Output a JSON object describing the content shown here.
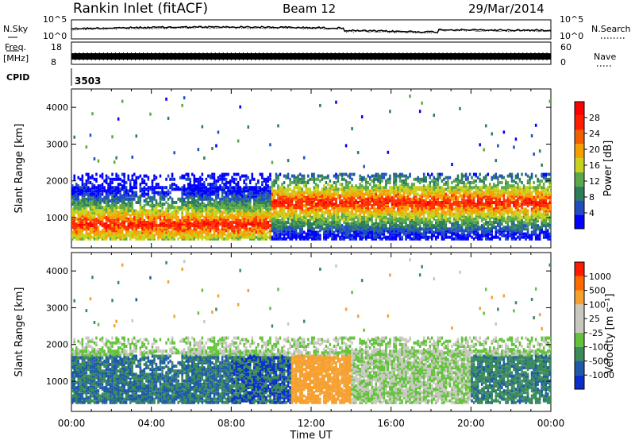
{
  "header": {
    "station": "Rankin Inlet (fitACF)",
    "beam": "Beam 12",
    "date": "29/Mar/2014"
  },
  "top_panels": {
    "nsky_label": "N.Sky",
    "nsearch_label": "N.Search",
    "nsky_ticks": [
      "10^5",
      "10^0"
    ],
    "nsearch_ticks": [
      "10^5",
      "10^0"
    ],
    "freq_label_1": "Freq.",
    "freq_label_2": "[MHz]",
    "freq_ticks": [
      "18",
      "8"
    ],
    "nave_label": "Nave",
    "nave_ticks": [
      "60",
      "0"
    ],
    "cpid_label": "CPID",
    "cpid_value": "3503"
  },
  "chart_data": [
    {
      "type": "heatmap",
      "quantity": "Power",
      "ylabel": "Slant Range [km]",
      "xlabel": "Time UT",
      "x_ticks": [
        "00:00",
        "04:00",
        "08:00",
        "12:00",
        "16:00",
        "20:00",
        "00:00"
      ],
      "xlim_hours": [
        0,
        24
      ],
      "y_ticks": [
        1000,
        2000,
        3000,
        4000
      ],
      "ylim": [
        180,
        4500
      ],
      "colorbar_label": "Power [dB]",
      "colorbar_ticks": [
        "28",
        "24",
        "20",
        "16",
        "12",
        "8",
        "4"
      ],
      "colorbar_colors": [
        "#0000ff",
        "#1f4fbf",
        "#2e7d5a",
        "#5aa84a",
        "#c8d21e",
        "#f5a000",
        "#f06000",
        "#ff1e00",
        "#ff0000"
      ]
    },
    {
      "type": "heatmap",
      "quantity": "Velocity",
      "ylabel": "Slant Range [km]",
      "xlabel": "Time UT",
      "x_ticks": [
        "00:00",
        "04:00",
        "08:00",
        "12:00",
        "16:00",
        "20:00",
        "00:00"
      ],
      "xlim_hours": [
        0,
        24
      ],
      "y_ticks": [
        1000,
        2000,
        3000,
        4000
      ],
      "ylim": [
        180,
        4500
      ],
      "colorbar_label": "Velocity [m s⁻¹]",
      "colorbar_ticks": [
        "1000",
        "500",
        "100",
        "25",
        "-25",
        "-100",
        "-500",
        "-1000"
      ],
      "colorbar_colors": [
        "#0a2fc8",
        "#1e5aa8",
        "#3a8a5a",
        "#62c23a",
        "#c8c8c0",
        "#c8c8c0",
        "#f5a030",
        "#ff6a00",
        "#ff1a00"
      ]
    }
  ]
}
